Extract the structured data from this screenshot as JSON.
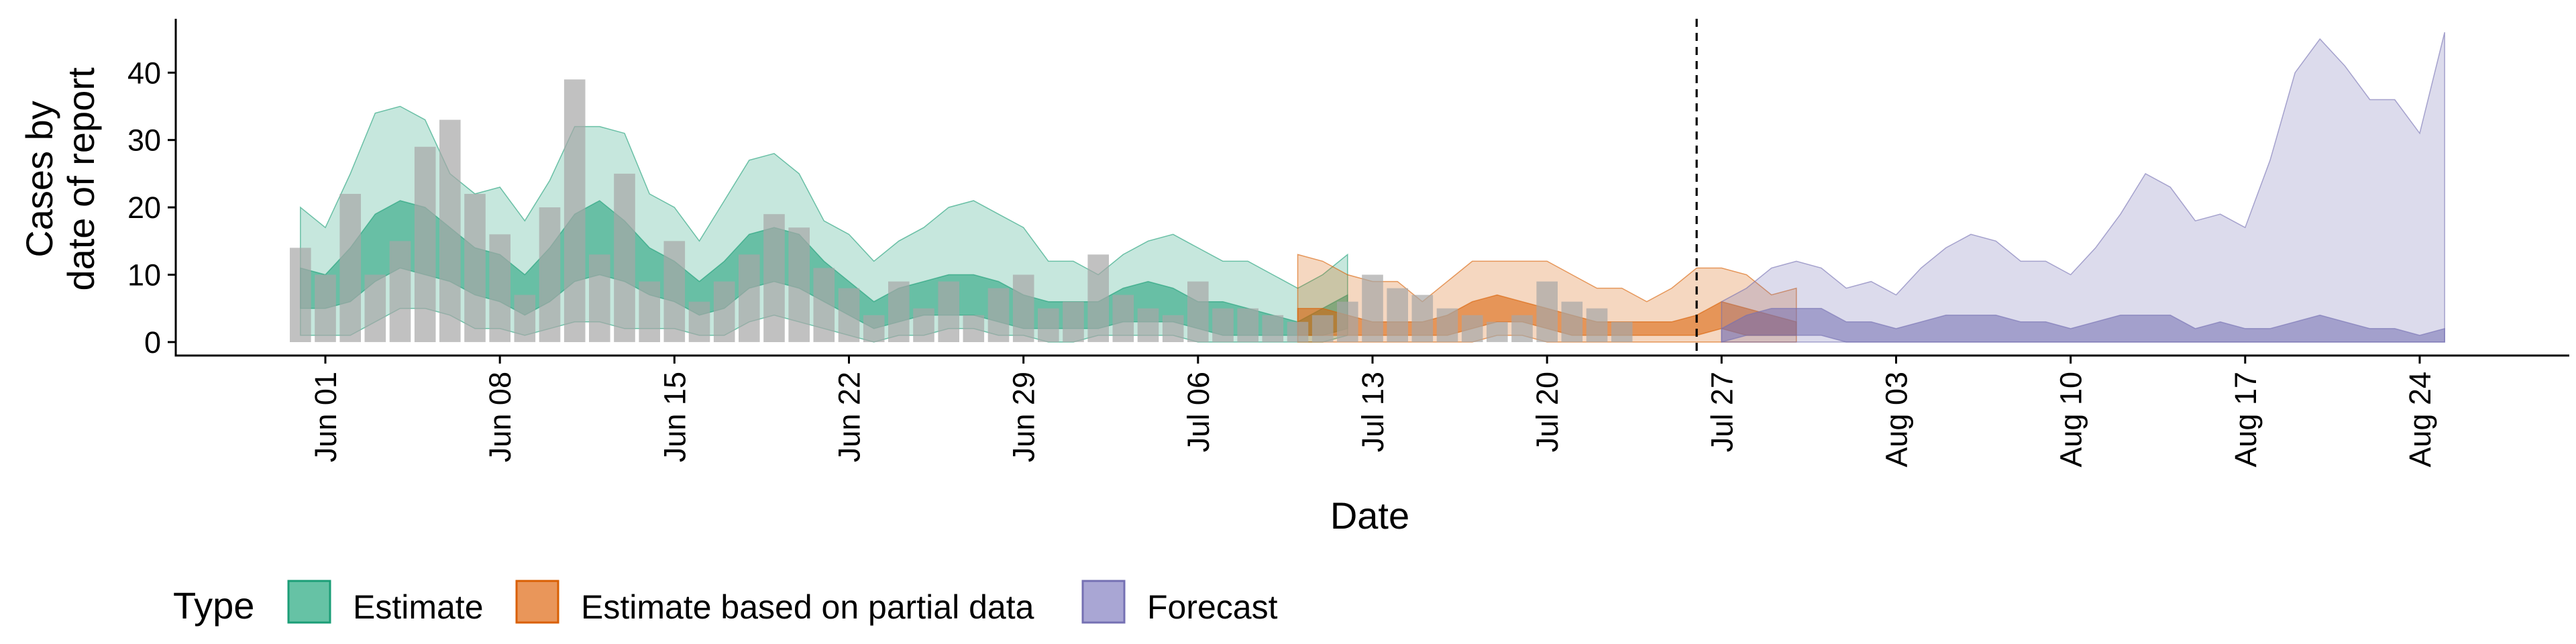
{
  "chart_data": {
    "type": "area",
    "xlabel": "Date",
    "ylabel_lines": [
      "Cases by",
      "date of report"
    ],
    "ylim": [
      -2,
      48
    ],
    "yticks": [
      0,
      10,
      20,
      30,
      40
    ],
    "x_domain": [
      "2020-05-26",
      "2020-08-30"
    ],
    "xticks": [
      {
        "date": "2020-06-01",
        "label": "Jun 01"
      },
      {
        "date": "2020-06-08",
        "label": "Jun 08"
      },
      {
        "date": "2020-06-15",
        "label": "Jun 15"
      },
      {
        "date": "2020-06-22",
        "label": "Jun 22"
      },
      {
        "date": "2020-06-29",
        "label": "Jun 29"
      },
      {
        "date": "2020-07-06",
        "label": "Jul 06"
      },
      {
        "date": "2020-07-13",
        "label": "Jul 13"
      },
      {
        "date": "2020-07-20",
        "label": "Jul 20"
      },
      {
        "date": "2020-07-27",
        "label": "Jul 27"
      },
      {
        "date": "2020-08-03",
        "label": "Aug 03"
      },
      {
        "date": "2020-08-10",
        "label": "Aug 10"
      },
      {
        "date": "2020-08-17",
        "label": "Aug 17"
      },
      {
        "date": "2020-08-24",
        "label": "Aug 24"
      }
    ],
    "vline_date": "2020-07-26",
    "legend": {
      "title": "Type",
      "position": "bottom",
      "items": [
        {
          "label": "Estimate",
          "fill": "#66c2a5",
          "stroke": "#1b9e77"
        },
        {
          "label": "Estimate based on partial data",
          "fill": "#e9965a",
          "stroke": "#d95f02"
        },
        {
          "label": "Forecast",
          "fill": "#a9a6d4",
          "stroke": "#7570b3"
        }
      ]
    },
    "colors": {
      "estimate": "#1b9e77",
      "partial": "#d95f02",
      "forecast": "#7570b3",
      "bars": "#a6a6a6"
    },
    "reported_cases": {
      "start_date": "2020-05-31",
      "values": [
        14,
        10,
        22,
        10,
        15,
        29,
        33,
        22,
        16,
        7,
        20,
        39,
        13,
        25,
        9,
        15,
        6,
        9,
        13,
        19,
        17,
        11,
        8,
        4,
        9,
        5,
        9,
        4,
        8,
        10,
        5,
        6,
        13,
        7,
        5,
        4,
        9,
        5,
        5,
        4,
        3,
        4,
        6,
        10,
        8,
        7,
        5,
        4,
        3,
        4,
        9,
        6,
        5,
        3
      ]
    },
    "series": [
      {
        "name": "Estimate",
        "start_date": "2020-05-31",
        "outer_upper": [
          20,
          17,
          25,
          34,
          35,
          33,
          25,
          22,
          23,
          18,
          24,
          32,
          32,
          31,
          22,
          20,
          15,
          21,
          27,
          28,
          25,
          18,
          16,
          12,
          15,
          17,
          20,
          21,
          19,
          17,
          12,
          12,
          10,
          13,
          15,
          16,
          14,
          12,
          12,
          10,
          8,
          10,
          13
        ],
        "outer_lower": [
          1,
          1,
          1,
          3,
          5,
          5,
          4,
          2,
          2,
          1,
          2,
          3,
          3,
          2,
          2,
          2,
          1,
          1,
          3,
          4,
          3,
          2,
          1,
          0,
          1,
          1,
          2,
          2,
          1,
          1,
          0,
          0,
          1,
          1,
          1,
          1,
          0,
          0,
          0,
          0,
          0,
          0,
          1
        ],
        "inner_upper": [
          11,
          10,
          14,
          19,
          21,
          20,
          17,
          14,
          13,
          10,
          14,
          19,
          21,
          18,
          14,
          12,
          9,
          12,
          16,
          17,
          16,
          12,
          9,
          6,
          8,
          9,
          10,
          10,
          9,
          7,
          6,
          6,
          6,
          8,
          9,
          8,
          6,
          6,
          5,
          4,
          3,
          5,
          7
        ],
        "inner_lower": [
          5,
          5,
          6,
          9,
          11,
          10,
          9,
          7,
          6,
          4,
          6,
          9,
          10,
          9,
          7,
          6,
          4,
          5,
          8,
          9,
          8,
          6,
          4,
          2,
          3,
          4,
          4,
          4,
          3,
          2,
          2,
          2,
          2,
          3,
          3,
          3,
          2,
          1,
          1,
          1,
          1,
          1,
          2
        ]
      },
      {
        "name": "Estimate based on partial data",
        "start_date": "2020-07-10",
        "outer_upper": [
          13,
          12,
          10,
          9,
          9,
          6,
          9,
          12,
          12,
          12,
          12,
          10,
          8,
          8,
          6,
          8,
          11,
          11,
          10,
          7,
          8
        ],
        "outer_lower": [
          0,
          0,
          0,
          0,
          0,
          0,
          0,
          0,
          1,
          1,
          0,
          0,
          0,
          0,
          0,
          0,
          0,
          0,
          0,
          0,
          0
        ],
        "inner_upper": [
          5,
          5,
          4,
          3,
          3,
          3,
          4,
          6,
          7,
          6,
          5,
          4,
          3,
          3,
          3,
          3,
          4,
          6,
          5,
          4,
          3
        ],
        "inner_lower": [
          1,
          1,
          1,
          1,
          1,
          1,
          1,
          2,
          3,
          3,
          2,
          1,
          1,
          1,
          1,
          1,
          1,
          2,
          1,
          1,
          1
        ]
      },
      {
        "name": "Forecast",
        "start_date": "2020-07-27",
        "outer_upper": [
          6,
          8,
          11,
          12,
          11,
          8,
          9,
          7,
          11,
          14,
          16,
          15,
          12,
          12,
          10,
          14,
          19,
          25,
          23,
          18,
          19,
          17,
          27,
          40,
          45,
          41,
          36,
          36,
          31,
          46
        ],
        "outer_lower": [
          0,
          0,
          0,
          0,
          0,
          0,
          0,
          0,
          0,
          0,
          0,
          0,
          0,
          0,
          0,
          0,
          0,
          0,
          0,
          0,
          0,
          0,
          0,
          0,
          0,
          0,
          0,
          0,
          0,
          0
        ],
        "inner_upper": [
          2,
          4,
          5,
          5,
          5,
          3,
          3,
          2,
          3,
          4,
          4,
          4,
          3,
          3,
          2,
          3,
          4,
          4,
          4,
          2,
          3,
          2,
          2,
          3,
          4,
          3,
          2,
          2,
          1,
          2
        ],
        "inner_lower": [
          0,
          1,
          1,
          1,
          1,
          0,
          0,
          0,
          0,
          0,
          0,
          0,
          0,
          0,
          0,
          0,
          0,
          0,
          0,
          0,
          0,
          0,
          0,
          0,
          0,
          0,
          0,
          0,
          0,
          0
        ]
      }
    ]
  }
}
